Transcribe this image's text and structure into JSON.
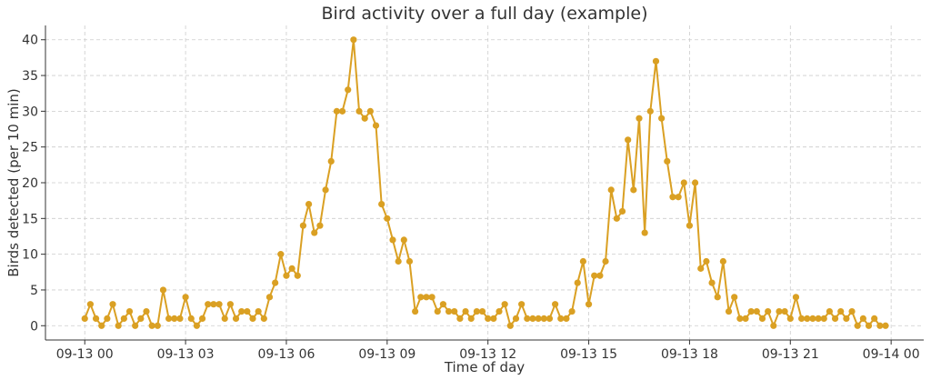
{
  "chart_data": {
    "type": "line",
    "title": "Bird activity over a full day (example)",
    "xlabel": "Time of day",
    "ylabel": "Birds detected (per 10 min)",
    "x_tick_labels": [
      "09-13 00",
      "09-13 03",
      "09-13 06",
      "09-13 09",
      "09-13 12",
      "09-13 15",
      "09-13 18",
      "09-13 21",
      "09-14 00"
    ],
    "x_tick_hours": [
      0,
      3,
      6,
      9,
      12,
      15,
      18,
      21,
      24
    ],
    "y_ticks": [
      0,
      5,
      10,
      15,
      20,
      25,
      30,
      35,
      40
    ],
    "xlim_hours": [
      -1.17,
      24.97
    ],
    "ylim": [
      -2,
      42
    ],
    "grid": true,
    "colors": {
      "line": "#DAA023"
    },
    "series": [
      {
        "x_start": "09-13 00:00",
        "x_interval_minutes": 10,
        "values": [
          1,
          3,
          1,
          0,
          1,
          3,
          0,
          1,
          2,
          0,
          1,
          2,
          0,
          0,
          5,
          1,
          1,
          1,
          4,
          1,
          0,
          1,
          3,
          3,
          3,
          1,
          3,
          1,
          2,
          2,
          1,
          2,
          1,
          4,
          6,
          10,
          7,
          8,
          7,
          14,
          17,
          13,
          14,
          19,
          23,
          30,
          30,
          33,
          40,
          30,
          29,
          30,
          28,
          17,
          15,
          12,
          9,
          12,
          9,
          2,
          4,
          4,
          4,
          2,
          3,
          2,
          2,
          1,
          2,
          1,
          2,
          2,
          1,
          1,
          2,
          3,
          0,
          1,
          3,
          1,
          1,
          1,
          1,
          1,
          3,
          1,
          1,
          2,
          6,
          9,
          3,
          7,
          7,
          9,
          19,
          15,
          16,
          26,
          19,
          29,
          13,
          30,
          37,
          29,
          23,
          18,
          18,
          20,
          14,
          20,
          8,
          9,
          6,
          4,
          9,
          2,
          4,
          1,
          1,
          2,
          2,
          1,
          2,
          0,
          2,
          2,
          1,
          4,
          1,
          1,
          1,
          1,
          1,
          2,
          1,
          2,
          1,
          2,
          0,
          1,
          0,
          1,
          0,
          0
        ]
      }
    ]
  }
}
